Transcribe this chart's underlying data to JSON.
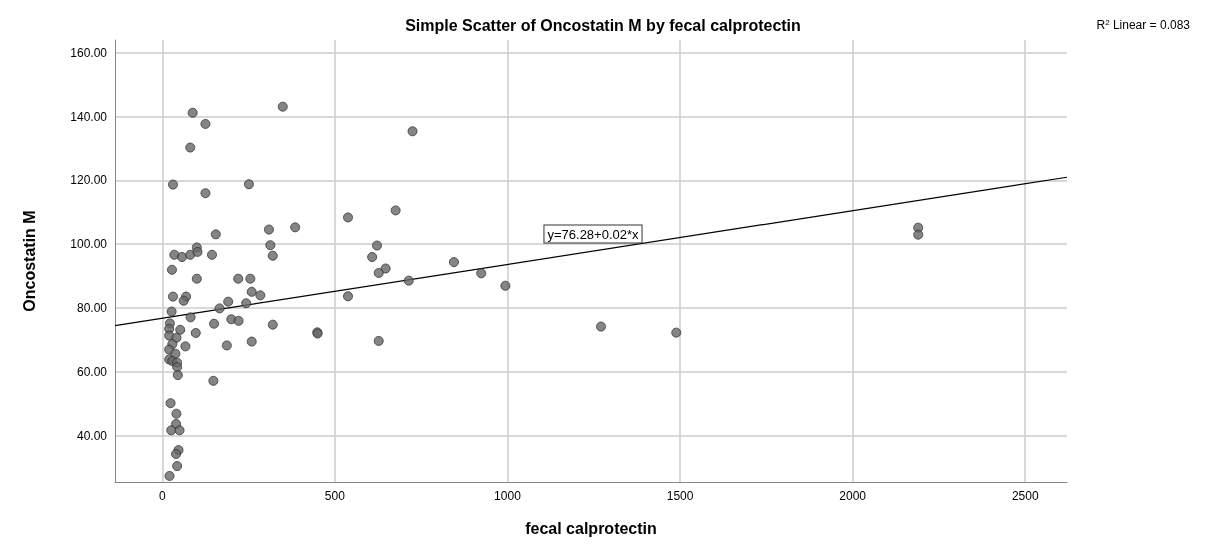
{
  "chart_data": {
    "type": "scatter",
    "title": "Simple Scatter of Oncostatin M by fecal calprotectin",
    "xlabel": "fecal calprotectin",
    "ylabel": "Oncostatin M",
    "xlim": [
      -137,
      2621
    ],
    "xticks": [
      0,
      500,
      1000,
      1500,
      2000,
      2500
    ],
    "ylim": [
      25.5,
      164
    ],
    "yticks": [
      {
        "value": 40,
        "label": "40.00"
      },
      {
        "value": 60,
        "label": "60.00"
      },
      {
        "value": 80,
        "label": "80.00"
      },
      {
        "value": 100,
        "label": "100.00"
      },
      {
        "value": 120,
        "label": "120.00"
      },
      {
        "value": 140,
        "label": "140.00"
      },
      {
        "value": 160,
        "label": "160.00"
      }
    ],
    "grid": true,
    "marker": "circle",
    "series": [
      {
        "color": "#666666",
        "x": [
          88,
          125,
          81,
          349,
          725,
          31,
          251,
          125,
          538,
          676,
          155,
          309,
          385,
          313,
          320,
          622,
          608,
          647,
          627,
          714,
          538,
          627,
          100,
          35,
          57,
          81,
          102,
          144,
          28,
          100,
          220,
          255,
          259,
          284,
          31,
          69,
          62,
          191,
          243,
          166,
          27,
          82,
          200,
          221,
          150,
          320,
          449,
          22,
          20,
          52,
          20,
          41,
          97,
          29,
          67,
          187,
          259,
          20,
          38,
          20,
          29,
          43,
          43,
          45,
          148,
          24,
          41,
          40,
          26,
          50,
          47,
          40,
          43,
          21,
          845,
          924,
          994,
          1271,
          1489,
          450,
          2190,
          2190
        ],
        "values": [
          141.2,
          137.7,
          130.3,
          143.1,
          135.4,
          118.7,
          118.8,
          116,
          108.4,
          110.6,
          103.1,
          104.6,
          105.3,
          99.7,
          96.4,
          99.6,
          96,
          92.4,
          91,
          88.6,
          83.7,
          69.7,
          99,
          96.7,
          96,
          96.7,
          97.6,
          96.7,
          92,
          89.2,
          89.2,
          89.2,
          85.1,
          84,
          83.6,
          83.6,
          82.3,
          82,
          81.5,
          79.9,
          78.9,
          77.1,
          76.5,
          76,
          75.1,
          74.8,
          72.4,
          75.2,
          73.5,
          73.2,
          71.4,
          70.7,
          72.2,
          68.7,
          68,
          68.3,
          69.5,
          67,
          65.7,
          63.9,
          63.4,
          62.9,
          61.5,
          59,
          57.2,
          50.2,
          46.9,
          43.7,
          41.7,
          41.7,
          35.5,
          34.3,
          30.5,
          27.4,
          94.4,
          90.9,
          87,
          74.2,
          72.3,
          72,
          105.2,
          103
        ]
      },
      {
        "type": "line",
        "color": "#000000",
        "marker": "none",
        "x": [
          -137,
          2621
        ],
        "values": [
          74.5,
          121.0
        ]
      }
    ],
    "annotations": [
      "y=76.28+0.02*x",
      "R$^{2}$ Linear = 0.083"
    ]
  }
}
